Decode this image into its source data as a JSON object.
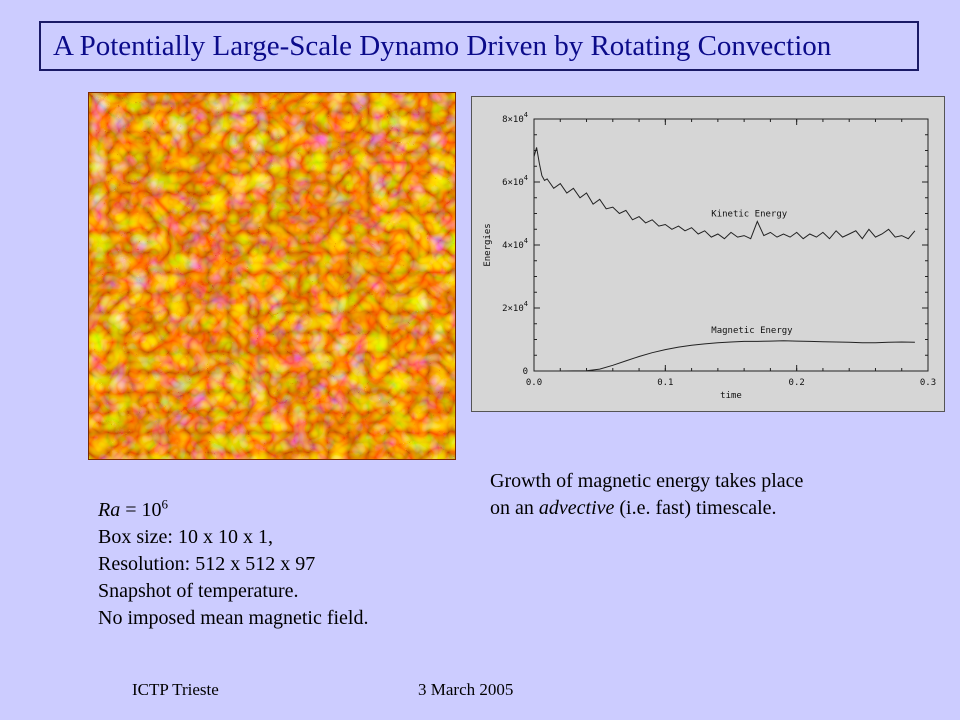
{
  "slide": {
    "title": "A Potentially Large-Scale Dynamo Driven by Rotating Convection",
    "params": {
      "ra_symbol": "Ra",
      "ra_eq": " = 10",
      "ra_exp": "6",
      "box_size": "Box size: 10 x 10 x 1,",
      "resolution": "Resolution: 512 x 512 x 97",
      "snapshot": "Snapshot of temperature.",
      "no_field": "No imposed mean magnetic field."
    },
    "growth_caption": {
      "line1": "Growth of magnetic energy takes place",
      "line2_prefix": "on an ",
      "line2_em": "advective",
      "line2_suffix": " (i.e. fast) timescale."
    },
    "footer": {
      "venue": "ICTP Trieste",
      "date": "3 March 2005"
    }
  },
  "colors": {
    "background": "#ccccff",
    "title_text": "#0b0b8a",
    "title_border": "#1a1a66",
    "plot_bg": "#d6d6d6"
  },
  "chart_data": {
    "type": "line",
    "xlabel": "time",
    "ylabel": "Energies",
    "xlim": [
      0.0,
      0.3
    ],
    "ylim": [
      0,
      80000
    ],
    "x_ticks": [
      "0.0",
      "0.1",
      "0.2",
      "0.3"
    ],
    "y_ticks": [
      {
        "value": 0,
        "base": "0",
        "exp": ""
      },
      {
        "value": 20000,
        "base": "2×10",
        "exp": "4"
      },
      {
        "value": 40000,
        "base": "4×10",
        "exp": "4"
      },
      {
        "value": 60000,
        "base": "6×10",
        "exp": "4"
      },
      {
        "value": 80000,
        "base": "8×10",
        "exp": "4"
      }
    ],
    "series": [
      {
        "name": "Kinetic Energy",
        "label_at": [
          0.135,
          49000
        ],
        "x": [
          0.0,
          0.002,
          0.004,
          0.006,
          0.008,
          0.01,
          0.015,
          0.02,
          0.025,
          0.03,
          0.035,
          0.04,
          0.045,
          0.05,
          0.055,
          0.06,
          0.065,
          0.07,
          0.075,
          0.08,
          0.085,
          0.09,
          0.095,
          0.1,
          0.105,
          0.11,
          0.115,
          0.12,
          0.125,
          0.13,
          0.135,
          0.14,
          0.145,
          0.15,
          0.155,
          0.16,
          0.165,
          0.17,
          0.175,
          0.18,
          0.185,
          0.19,
          0.195,
          0.2,
          0.205,
          0.21,
          0.215,
          0.22,
          0.225,
          0.23,
          0.235,
          0.24,
          0.245,
          0.25,
          0.255,
          0.26,
          0.265,
          0.27,
          0.275,
          0.28,
          0.285,
          0.29
        ],
        "y": [
          68000,
          71000,
          66000,
          62000,
          60500,
          61000,
          58000,
          59500,
          56500,
          58000,
          55000,
          56500,
          53000,
          54500,
          51500,
          52000,
          50000,
          51000,
          48000,
          49000,
          47000,
          48000,
          46000,
          46500,
          45000,
          46000,
          44500,
          45500,
          43500,
          44500,
          42500,
          43500,
          42000,
          44000,
          42500,
          43000,
          42000,
          47500,
          43000,
          44000,
          42500,
          43500,
          42500,
          44000,
          42000,
          43500,
          42500,
          44000,
          42000,
          44500,
          42500,
          43500,
          44500,
          42000,
          45000,
          42500,
          43500,
          45000,
          42500,
          43000,
          42000,
          44500
        ]
      },
      {
        "name": "Magnetic Energy",
        "label_at": [
          0.135,
          12000
        ],
        "x": [
          0.0,
          0.02,
          0.04,
          0.05,
          0.06,
          0.07,
          0.08,
          0.09,
          0.1,
          0.11,
          0.12,
          0.13,
          0.14,
          0.15,
          0.16,
          0.17,
          0.18,
          0.19,
          0.2,
          0.21,
          0.22,
          0.23,
          0.24,
          0.25,
          0.26,
          0.27,
          0.28,
          0.29
        ],
        "y": [
          0,
          0,
          100,
          600,
          1800,
          3200,
          4600,
          5800,
          6800,
          7600,
          8200,
          8600,
          9000,
          9200,
          9400,
          9400,
          9500,
          9600,
          9500,
          9400,
          9300,
          9200,
          9100,
          9000,
          9000,
          9100,
          9200,
          9100
        ]
      }
    ]
  }
}
